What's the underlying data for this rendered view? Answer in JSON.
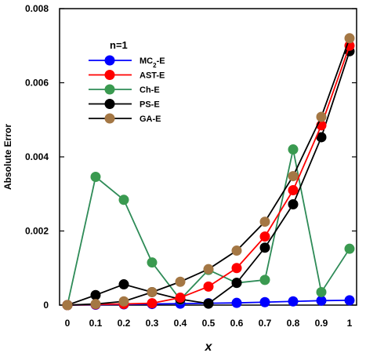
{
  "chart_data": {
    "type": "line",
    "title": "",
    "xlabel": "x",
    "ylabel": "Absolute Error",
    "xlim": [
      0,
      1
    ],
    "ylim": [
      0,
      0.008
    ],
    "x_ticks": [
      "0",
      "0.1",
      "0.2",
      "0.3",
      "0.4",
      "0.5",
      "0.6",
      "0.7",
      "0.8",
      "0.9",
      "1"
    ],
    "y_ticks": [
      "0",
      "0.002",
      "0.004",
      "0.006",
      "0.008"
    ],
    "grid": false,
    "legend": {
      "title": "n=1",
      "placement": "top-left",
      "entries": [
        {
          "prefix": "MC",
          "sub": "2",
          "suffix": "-E"
        },
        {
          "prefix": "AST-E",
          "sub": "",
          "suffix": ""
        },
        {
          "prefix": "Ch-E",
          "sub": "",
          "suffix": ""
        },
        {
          "prefix": "PS-E",
          "sub": "",
          "suffix": ""
        },
        {
          "prefix": "GA-E",
          "sub": "",
          "suffix": ""
        }
      ]
    },
    "x": [
      0,
      0.1,
      0.2,
      0.3,
      0.4,
      0.5,
      0.6,
      0.7,
      0.8,
      0.9,
      1
    ],
    "series": [
      {
        "name": "MC2-E",
        "line_color": "#0000ff",
        "marker_color": "#0000ff",
        "values": [
          0,
          1e-05,
          2e-05,
          3e-05,
          4e-05,
          5e-05,
          6e-05,
          8e-05,
          0.0001,
          0.00012,
          0.00013
        ]
      },
      {
        "name": "Ch-E",
        "line_color": "#2e8b57",
        "marker_color": "#3a9a50",
        "values": [
          0,
          0.00346,
          0.00284,
          0.00115,
          0.00015,
          0.00095,
          0.0006,
          0.00068,
          0.0042,
          0.00035,
          0.00152
        ]
      },
      {
        "name": "PS-E",
        "line_color": "#000000",
        "marker_color": "#000000",
        "values": [
          0,
          0.00027,
          0.00056,
          0.00035,
          0.00016,
          4e-05,
          0.0006,
          0.00155,
          0.00272,
          0.00453,
          0.00685
        ]
      },
      {
        "name": "AST-E",
        "line_color": "#ff0000",
        "marker_color": "#ff0000",
        "values": [
          0,
          2e-05,
          3e-05,
          5e-05,
          0.0002,
          0.0005,
          0.001,
          0.00185,
          0.0031,
          0.00485,
          0.007
        ]
      },
      {
        "name": "GA-E",
        "line_color": "#000000",
        "marker_color": "#a47744",
        "values": [
          0,
          3e-05,
          0.0001,
          0.00035,
          0.00063,
          0.00097,
          0.00147,
          0.00225,
          0.00348,
          0.00508,
          0.0072
        ]
      }
    ]
  }
}
